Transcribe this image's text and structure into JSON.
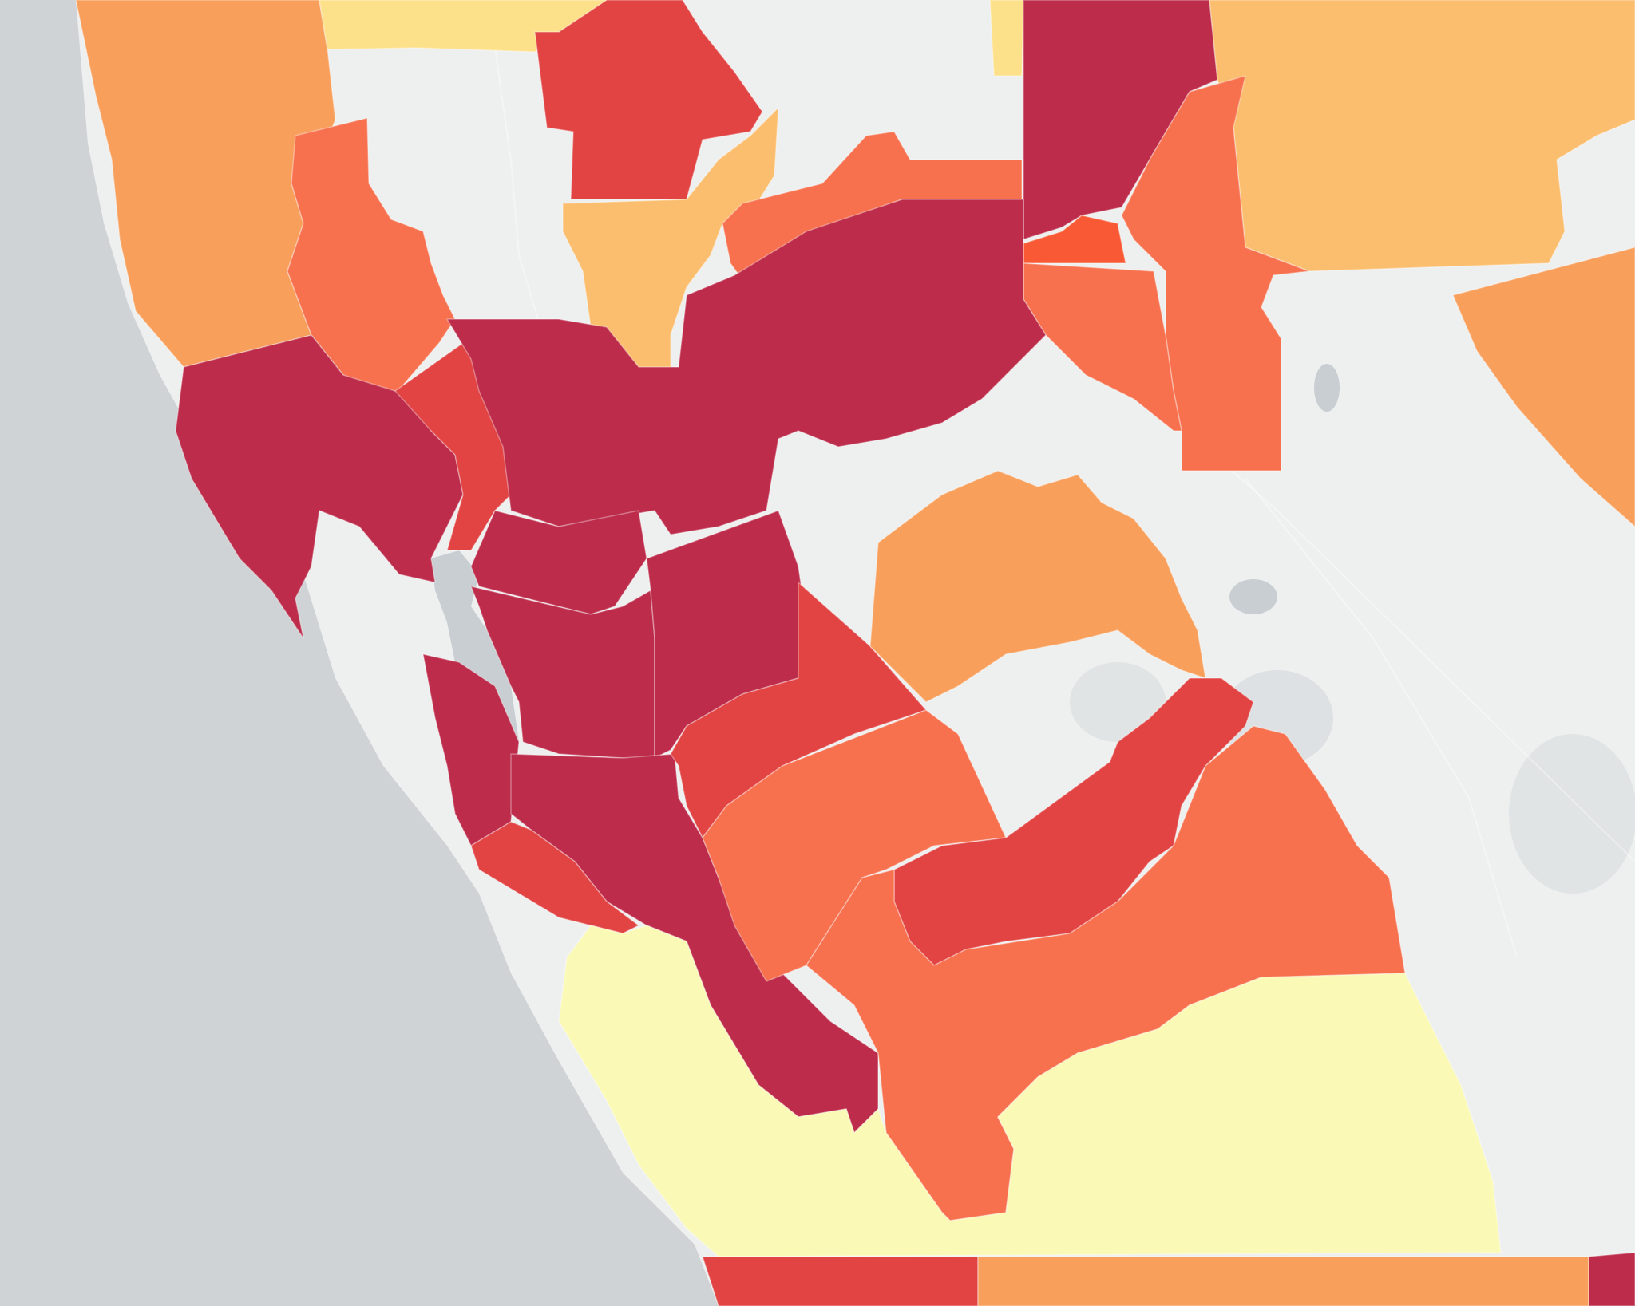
{
  "map": {
    "colors": {
      "ocean": "#cfd3d6",
      "land": "#eef0f0",
      "lake": "#c9ced2",
      "level1": "#fbf9b6",
      "level2": "#fde08a",
      "level3": "#fbbe6e",
      "level4": "#f89f5c",
      "level5": "#f7714f",
      "level6": "#e24444",
      "level7": "#bd2c4b",
      "accent": "#f95a35"
    }
  }
}
